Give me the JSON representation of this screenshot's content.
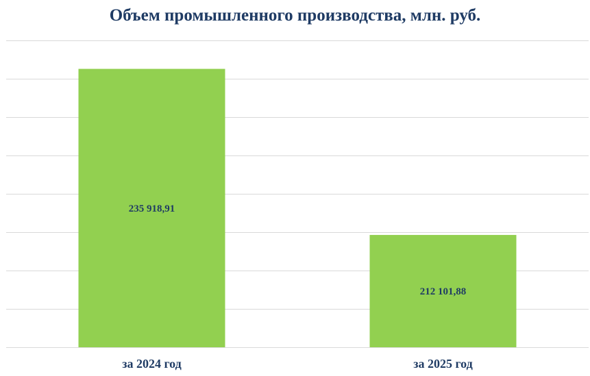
{
  "chart_data": {
    "type": "bar",
    "title": "Объем промышленного производства, млн. руб.",
    "xlabel": "",
    "ylabel": "",
    "categories": [
      "за 2024 год",
      "за 2025 год"
    ],
    "values": [
      235918.91,
      212101.88
    ],
    "value_labels": [
      "235 918,91",
      "212 101,88"
    ],
    "ylim": [
      196000,
      240000
    ],
    "grid": true,
    "legend": "none",
    "colors": {
      "bar": "#92d050",
      "text": "#1f3b64",
      "grid": "#d9d9d9"
    }
  }
}
